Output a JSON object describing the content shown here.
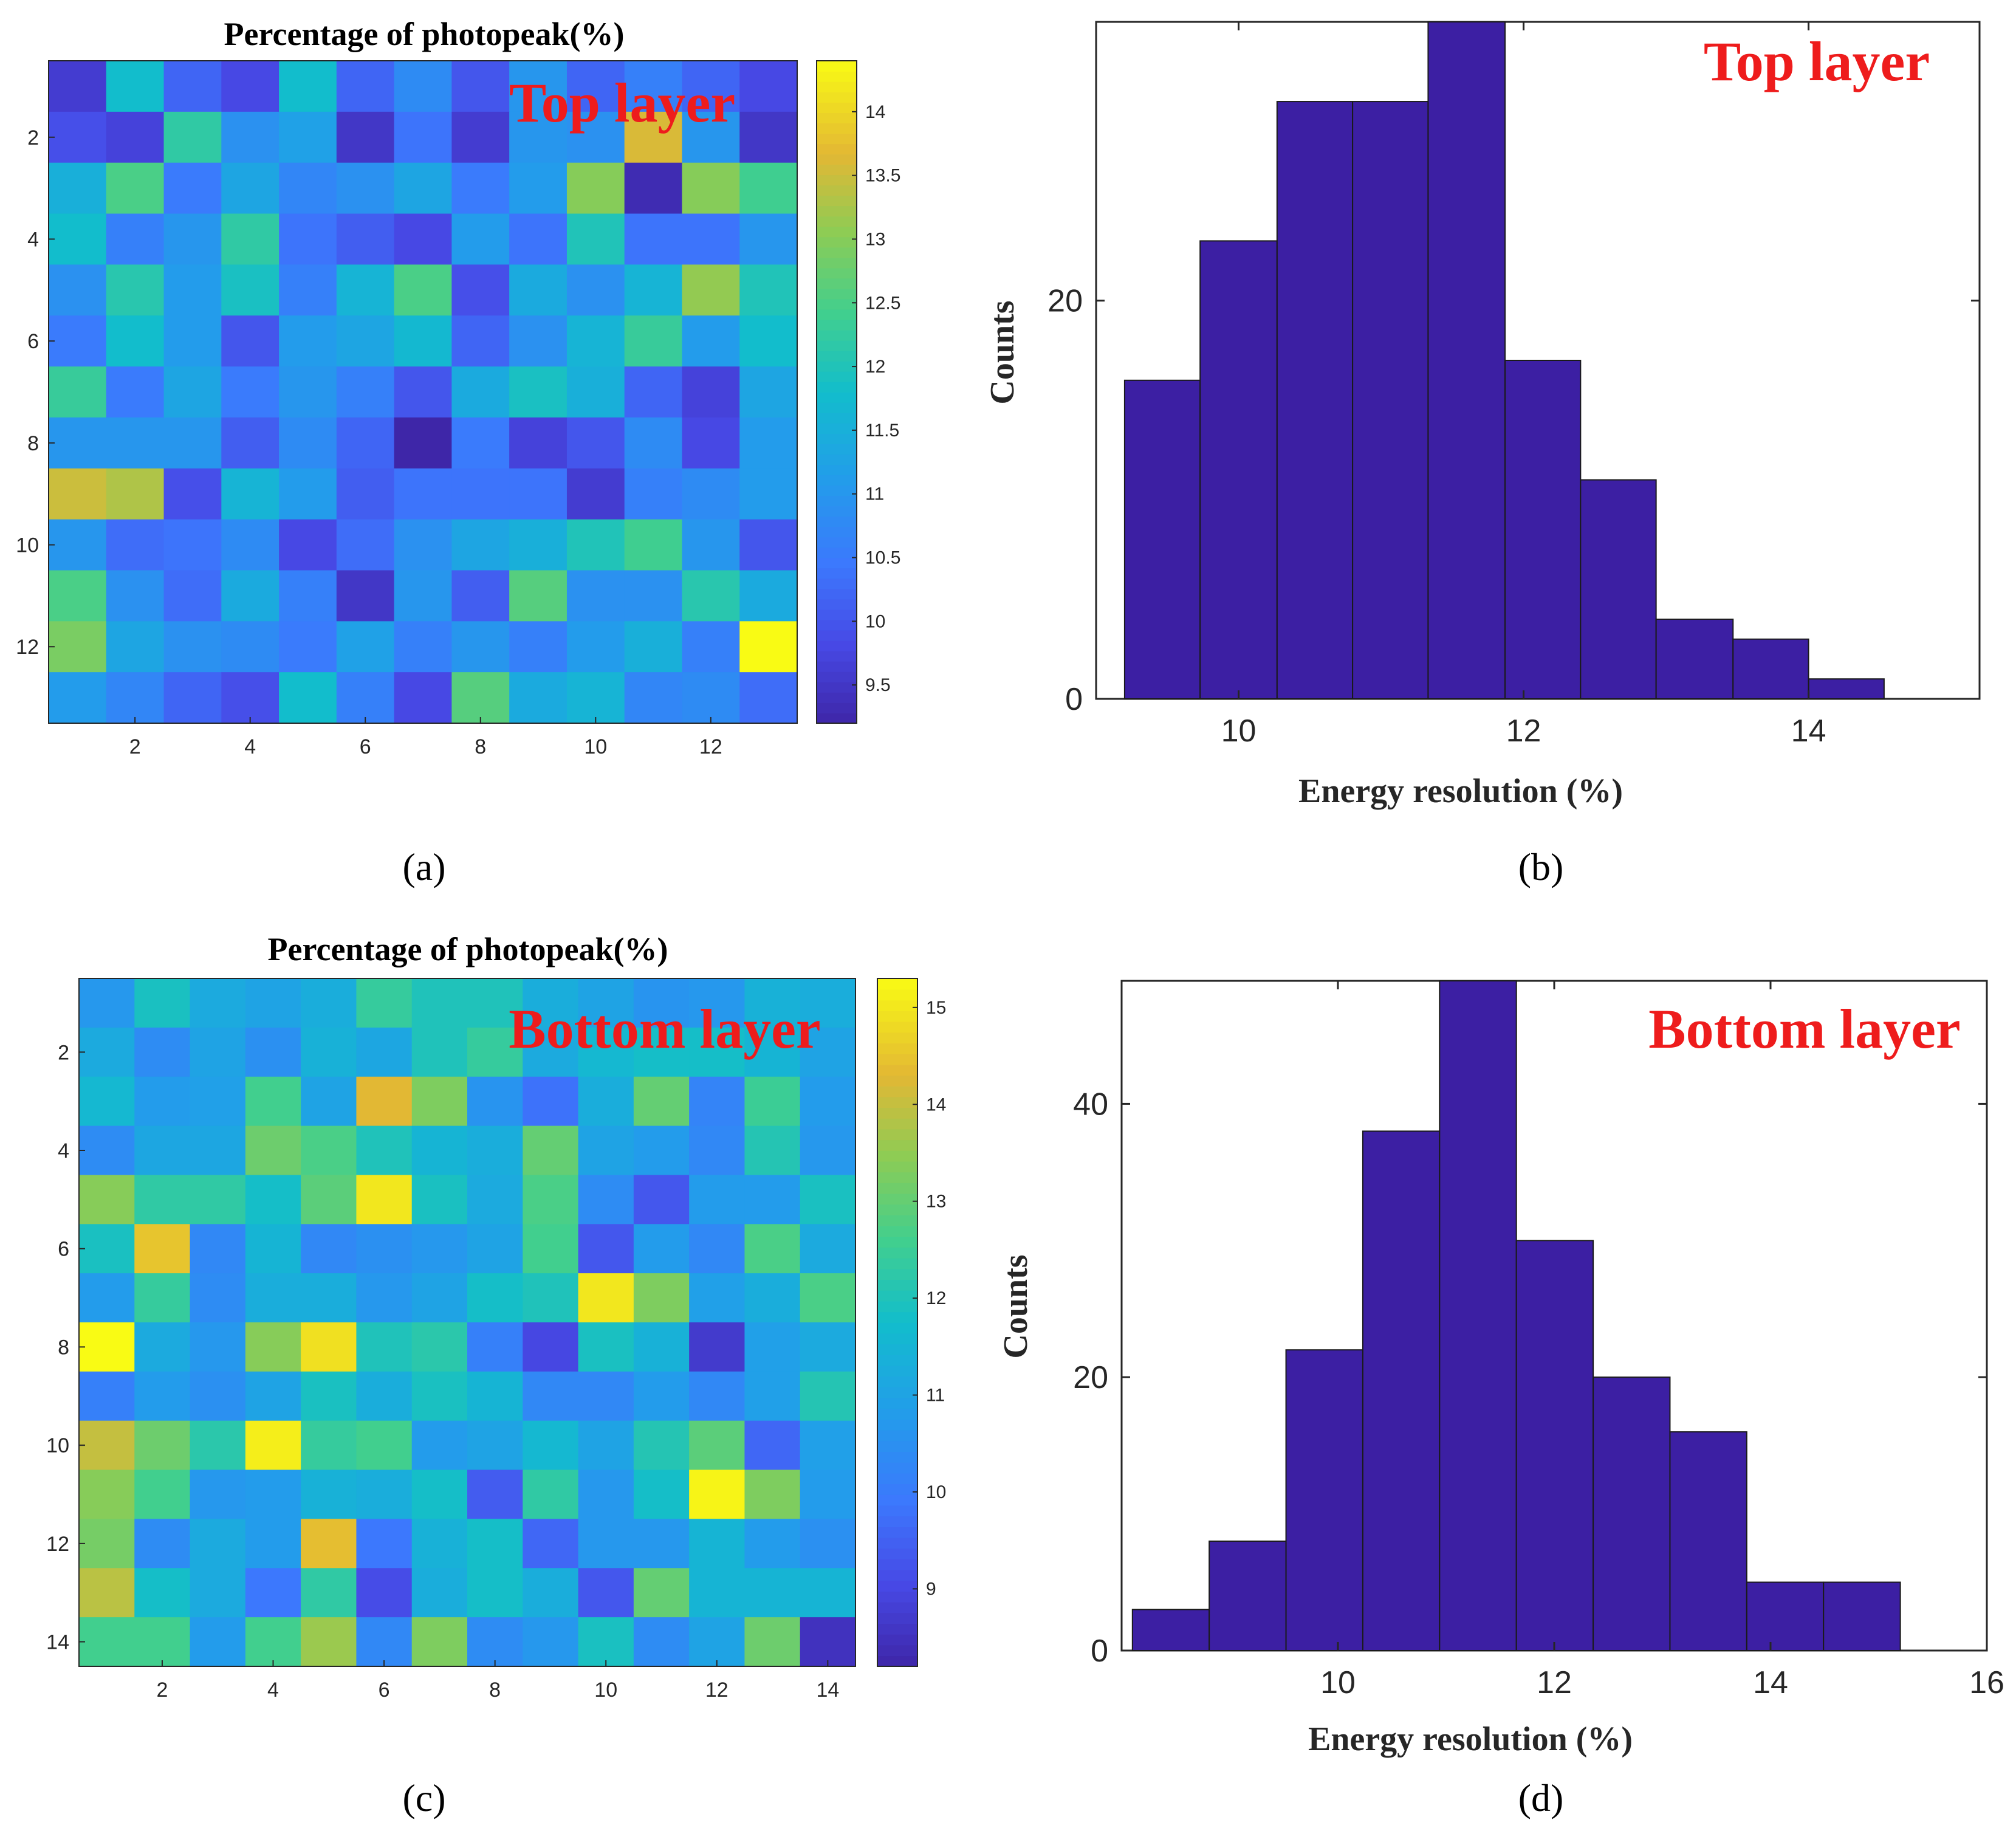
{
  "colors": {
    "bar": "#3c1fa3",
    "annotation": "#ee1c1c",
    "axis": "#262626"
  },
  "chart_data": [
    {
      "panel": "a",
      "panel_label": "(a)",
      "type": "heatmap",
      "title": "Percentage of photopeak(%)",
      "annotation": "Top layer",
      "n_rows": 13,
      "n_cols": 13,
      "x_ticks": [
        "2",
        "4",
        "6",
        "8",
        "10",
        "12"
      ],
      "y_ticks": [
        "2",
        "4",
        "6",
        "8",
        "10",
        "12"
      ],
      "clim": [
        9.2,
        14.4
      ],
      "colorbar_ticks": [
        "9.5",
        "10",
        "10.5",
        "11",
        "11.5",
        "12",
        "12.5",
        "13",
        "13.5",
        "14"
      ],
      "values": [
        [
          9.6,
          11.8,
          10.2,
          9.8,
          11.8,
          10.2,
          10.8,
          10.0,
          11.0,
          10.2,
          10.6,
          10.2,
          9.8
        ],
        [
          9.9,
          9.7,
          12.2,
          10.9,
          11.2,
          9.5,
          10.4,
          9.6,
          11.0,
          10.9,
          13.6,
          11.0,
          9.5
        ],
        [
          11.5,
          12.5,
          10.5,
          11.3,
          10.7,
          10.9,
          11.3,
          10.5,
          11.1,
          13.0,
          9.3,
          13.0,
          12.4
        ],
        [
          11.8,
          10.6,
          11.0,
          12.2,
          10.4,
          10.1,
          9.8,
          11.1,
          10.4,
          12.0,
          10.4,
          10.4,
          11.0
        ],
        [
          10.9,
          12.1,
          11.1,
          11.9,
          10.6,
          11.6,
          12.5,
          9.9,
          11.4,
          10.9,
          11.6,
          13.1,
          12.0
        ],
        [
          10.5,
          11.8,
          11.1,
          10.0,
          11.1,
          11.3,
          11.7,
          10.2,
          10.9,
          11.6,
          12.3,
          11.1,
          11.8
        ],
        [
          12.3,
          10.5,
          11.3,
          10.5,
          11.0,
          10.6,
          10.0,
          11.4,
          11.9,
          11.5,
          10.2,
          9.7,
          11.3
        ],
        [
          11.0,
          11.0,
          11.0,
          10.1,
          10.8,
          10.2,
          9.2,
          10.5,
          9.7,
          10.0,
          10.8,
          9.8,
          11.1
        ],
        [
          13.5,
          13.3,
          9.9,
          11.6,
          11.1,
          10.1,
          10.4,
          10.4,
          10.4,
          9.6,
          10.6,
          10.8,
          11.1
        ],
        [
          11.0,
          10.3,
          10.4,
          10.8,
          9.8,
          10.3,
          10.9,
          11.3,
          11.5,
          12.0,
          12.4,
          11.0,
          10.0
        ],
        [
          12.5,
          10.9,
          10.3,
          11.4,
          10.6,
          9.5,
          11.0,
          10.1,
          12.6,
          10.9,
          10.9,
          12.1,
          11.4
        ],
        [
          12.9,
          11.3,
          10.9,
          10.8,
          10.5,
          11.2,
          10.6,
          11.0,
          10.6,
          11.1,
          11.5,
          10.6,
          14.4
        ],
        [
          11.1,
          10.7,
          10.2,
          9.9,
          11.8,
          10.6,
          9.8,
          12.6,
          11.4,
          11.6,
          10.7,
          10.8,
          10.3
        ]
      ]
    },
    {
      "panel": "b",
      "panel_label": "(b)",
      "type": "bar",
      "subtype": "histogram",
      "annotation": "Top layer",
      "xlabel": "Energy resolution (%)",
      "ylabel": "Counts",
      "xlim": [
        9.0,
        15.2
      ],
      "ylim": [
        0,
        34
      ],
      "x_ticks": [
        10,
        12,
        14
      ],
      "y_ticks": [
        0,
        20
      ],
      "bin_edges": [
        9.2,
        9.73,
        10.27,
        10.8,
        11.33,
        11.87,
        12.4,
        12.93,
        13.47,
        14.0,
        14.53
      ],
      "values": [
        16,
        23,
        30,
        30,
        34,
        17,
        11,
        4,
        3,
        1
      ]
    },
    {
      "panel": "c",
      "panel_label": "(c)",
      "type": "heatmap",
      "title": "Percentage of photopeak(%)",
      "annotation": "Bottom layer",
      "n_rows": 14,
      "n_cols": 14,
      "x_ticks": [
        "2",
        "4",
        "6",
        "8",
        "10",
        "12",
        "14"
      ],
      "y_ticks": [
        "2",
        "4",
        "6",
        "8",
        "10",
        "12",
        "14"
      ],
      "clim": [
        8.2,
        15.3
      ],
      "colorbar_ticks": [
        "9",
        "10",
        "11",
        "12",
        "13",
        "14",
        "15"
      ],
      "values": [
        [
          10.7,
          11.9,
          11.2,
          11.0,
          11.3,
          12.4,
          12.0,
          12.0,
          11.3,
          11.0,
          10.6,
          10.7,
          11.4,
          11.3
        ],
        [
          11.2,
          10.4,
          11.0,
          10.5,
          11.4,
          11.1,
          12.0,
          12.4,
          11.2,
          11.6,
          11.8,
          11.8,
          11.5,
          11.0
        ],
        [
          11.6,
          10.8,
          10.9,
          12.6,
          11.0,
          14.3,
          13.3,
          10.6,
          9.8,
          11.3,
          13.0,
          10.2,
          12.5,
          10.8
        ],
        [
          10.4,
          11.1,
          11.1,
          13.1,
          12.7,
          12.0,
          11.5,
          11.3,
          13.0,
          11.0,
          10.8,
          10.3,
          12.1,
          10.7
        ],
        [
          13.4,
          12.3,
          12.3,
          11.8,
          12.9,
          15.0,
          11.9,
          11.2,
          12.7,
          10.4,
          9.3,
          10.8,
          10.8,
          11.9
        ],
        [
          11.9,
          14.5,
          10.3,
          11.5,
          10.3,
          10.5,
          10.7,
          11.0,
          12.6,
          9.3,
          10.8,
          10.3,
          12.7,
          11.2
        ],
        [
          10.8,
          12.4,
          10.4,
          11.3,
          11.3,
          10.7,
          11.0,
          11.8,
          12.0,
          15.0,
          13.3,
          10.9,
          11.3,
          12.7
        ],
        [
          15.3,
          11.2,
          10.7,
          13.4,
          14.9,
          12.0,
          12.2,
          10.1,
          9.0,
          11.9,
          11.4,
          8.7,
          10.9,
          11.2
        ],
        [
          10.1,
          10.8,
          10.5,
          11.0,
          11.9,
          11.3,
          11.9,
          11.5,
          10.3,
          10.3,
          10.8,
          10.3,
          10.9,
          12.1
        ],
        [
          14.0,
          13.1,
          12.2,
          15.1,
          12.4,
          12.6,
          10.8,
          11.0,
          11.6,
          11.0,
          12.1,
          12.9,
          9.6,
          10.9
        ],
        [
          13.4,
          12.6,
          10.7,
          10.8,
          11.4,
          11.3,
          11.8,
          9.4,
          12.3,
          10.7,
          11.8,
          15.2,
          13.3,
          10.8
        ],
        [
          13.2,
          10.4,
          11.2,
          10.8,
          14.4,
          9.9,
          11.4,
          11.8,
          9.6,
          10.7,
          10.7,
          11.5,
          10.8,
          10.5
        ],
        [
          13.9,
          11.8,
          11.2,
          9.9,
          12.3,
          9.1,
          11.3,
          11.8,
          11.3,
          9.3,
          13.0,
          11.5,
          11.5,
          11.5
        ],
        [
          12.6,
          12.6,
          10.8,
          12.6,
          13.6,
          10.3,
          13.3,
          10.4,
          10.7,
          11.9,
          10.4,
          11.0,
          13.1,
          8.5
        ]
      ]
    },
    {
      "panel": "d",
      "panel_label": "(d)",
      "type": "bar",
      "subtype": "histogram",
      "annotation": "Bottom layer",
      "xlabel": "Energy resolution (%)",
      "ylabel": "Counts",
      "xlim": [
        8.0,
        16.0
      ],
      "ylim": [
        0,
        49
      ],
      "x_ticks": [
        10,
        12,
        14,
        16
      ],
      "y_ticks": [
        0,
        20,
        40
      ],
      "bin_edges": [
        8.1,
        8.81,
        9.52,
        10.23,
        10.94,
        11.65,
        12.36,
        13.07,
        13.78,
        14.49,
        15.2
      ],
      "values": [
        3,
        8,
        22,
        38,
        49,
        30,
        20,
        16,
        5,
        5
      ]
    }
  ]
}
